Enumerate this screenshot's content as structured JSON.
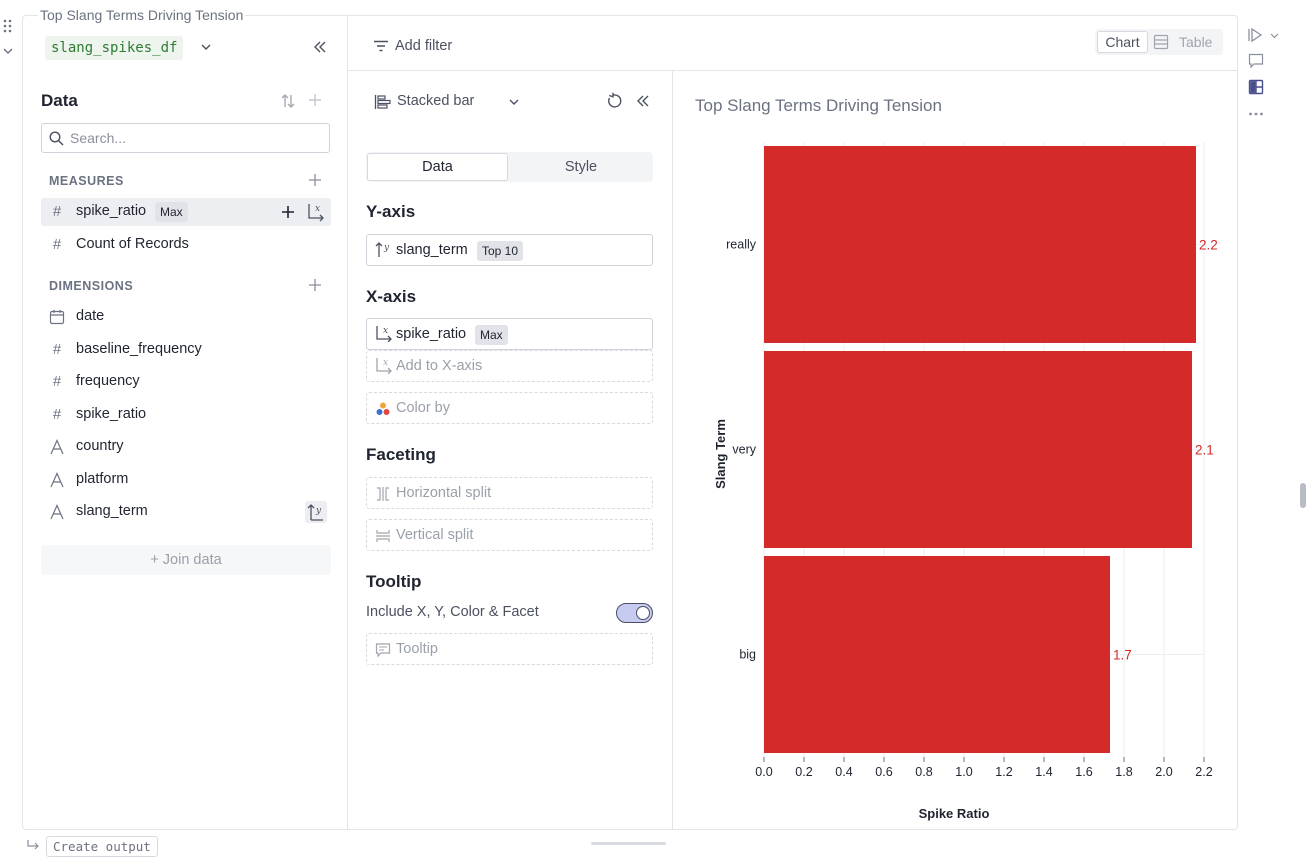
{
  "cell": {
    "title": "Top Slang Terms Driving Tension",
    "dataframe": "slang_spikes_df"
  },
  "data_panel": {
    "heading": "Data",
    "search_placeholder": "Search...",
    "measures_label": "MEASURES",
    "dimensions_label": "DIMENSIONS",
    "measures": [
      {
        "icon": "hash-icon",
        "label": "spike_ratio",
        "badge": "Max"
      },
      {
        "icon": "hash-icon",
        "label": "Count of Records"
      }
    ],
    "dimensions": [
      {
        "icon": "calendar-icon",
        "label": "date"
      },
      {
        "icon": "hash-icon",
        "label": "baseline_frequency"
      },
      {
        "icon": "hash-icon",
        "label": "frequency"
      },
      {
        "icon": "hash-icon",
        "label": "spike_ratio"
      },
      {
        "icon": "text-icon",
        "label": "country"
      },
      {
        "icon": "text-icon",
        "label": "platform"
      },
      {
        "icon": "text-icon",
        "label": "slang_term"
      }
    ],
    "join_data": "+ Join data"
  },
  "toolbar": {
    "add_filter": "Add filter",
    "view_chart": "Chart",
    "view_table": "Table"
  },
  "config": {
    "chart_type": "Stacked bar",
    "tab_data": "Data",
    "tab_style": "Style",
    "y_axis_heading": "Y-axis",
    "y_field": "slang_term",
    "y_badge": "Top 10",
    "x_axis_heading": "X-axis",
    "x_field": "spike_ratio",
    "x_badge": "Max",
    "add_x_axis": "Add to X-axis",
    "color_by": "Color by",
    "faceting_heading": "Faceting",
    "horizontal_split": "Horizontal split",
    "vertical_split": "Vertical split",
    "tooltip_heading": "Tooltip",
    "tooltip_include": "Include X, Y, Color & Facet",
    "tooltip_include_on": true,
    "tooltip_slot": "Tooltip"
  },
  "chart_data": {
    "type": "bar",
    "orientation": "horizontal",
    "title": "Top Slang Terms Driving Tension",
    "xlabel": "Spike Ratio",
    "ylabel": "Slang Term",
    "categories": [
      "really",
      "very",
      "big"
    ],
    "values": [
      2.16,
      2.14,
      1.73
    ],
    "data_labels": [
      "2.2",
      "2.1",
      "1.7"
    ],
    "xlim": [
      0,
      2.2
    ],
    "x_ticks": [
      "0.0",
      "0.2",
      "0.4",
      "0.6",
      "0.8",
      "1.0",
      "1.2",
      "1.4",
      "1.6",
      "1.8",
      "2.0",
      "2.2"
    ],
    "bar_color": "#d42a2a",
    "label_color": "#d42a2a",
    "grid": true
  },
  "bottom": {
    "create_output": "Create output"
  }
}
